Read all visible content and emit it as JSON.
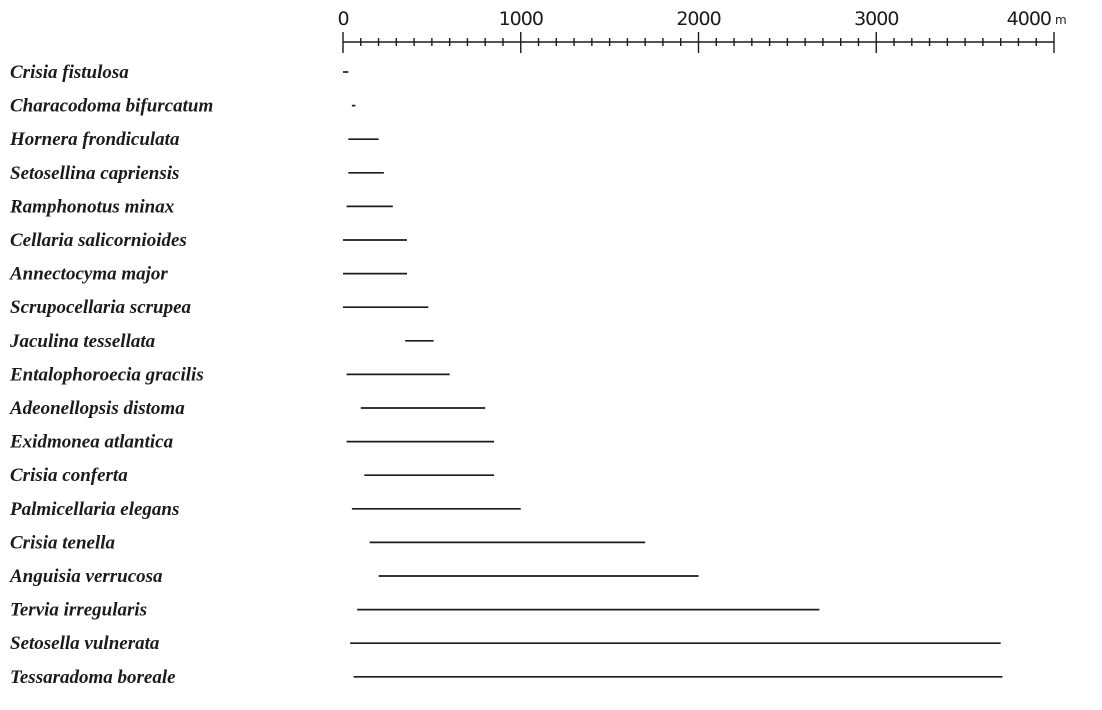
{
  "chart_data": {
    "type": "range",
    "xlim": [
      0,
      4000
    ],
    "x_unit": "m",
    "major_ticks": [
      0,
      1000,
      2000,
      3000,
      4000
    ],
    "minor_tick_step": 100,
    "tick_labels": [
      "0",
      "1000",
      "2000",
      "3000",
      "4000"
    ],
    "categories": [
      "Crisia fistulosa",
      "Characodoma bifurcatum",
      "Hornera frondiculata",
      "Setosellina capriensis",
      "Ramphonotus minax",
      "Cellaria salicornioides",
      "Annectocyma major",
      "Scrupocellaria scrupea",
      "Jaculina tessellata",
      "Entalophoroecia gracilis",
      "Adeonellopsis distoma",
      "Exidmonea atlantica",
      "Crisia conferta",
      "Palmicellaria elegans",
      "Crisia tenella",
      "Anguisia verrucosa",
      "Tervia irregularis",
      "Setosella vulnerata",
      "Tessaradoma boreale"
    ],
    "ranges": [
      [
        0,
        30
      ],
      [
        50,
        70
      ],
      [
        30,
        200
      ],
      [
        30,
        230
      ],
      [
        20,
        280
      ],
      [
        0,
        360
      ],
      [
        0,
        360
      ],
      [
        0,
        480
      ],
      [
        350,
        510
      ],
      [
        20,
        600
      ],
      [
        100,
        800
      ],
      [
        20,
        850
      ],
      [
        120,
        850
      ],
      [
        50,
        1000
      ],
      [
        150,
        1700
      ],
      [
        200,
        2000
      ],
      [
        80,
        2680
      ],
      [
        40,
        3700
      ],
      [
        60,
        3710
      ]
    ]
  }
}
